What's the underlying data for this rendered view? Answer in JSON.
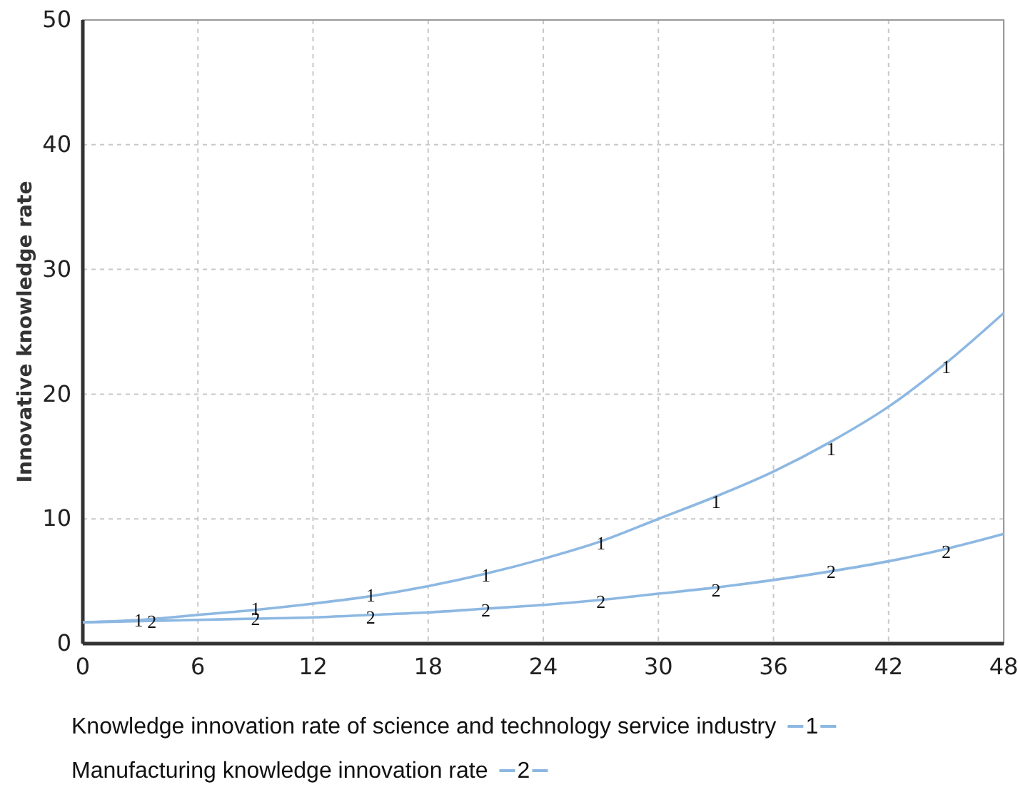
{
  "chart_data": {
    "type": "line",
    "ylabel": "Innovative knowledge rate",
    "x": [
      0,
      3,
      6,
      9,
      12,
      15,
      18,
      21,
      24,
      27,
      30,
      33,
      36,
      39,
      42,
      45,
      48
    ],
    "series": [
      {
        "name": "Knowledge innovation rate of science and technology service industry",
        "color": "#8db8e2",
        "values": [
          1.7,
          1.9,
          2.3,
          2.7,
          3.2,
          3.8,
          4.6,
          5.6,
          6.8,
          8.2,
          10,
          11.8,
          13.8,
          16.2,
          19,
          22.5,
          26.5
        ]
      },
      {
        "name": "Manufacturing knowledge innovation rate",
        "color": "#8db8e2",
        "values": [
          1.7,
          1.8,
          1.9,
          2.0,
          2.1,
          2.3,
          2.5,
          2.8,
          3.1,
          3.5,
          4,
          4.5,
          5.1,
          5.8,
          6.6,
          7.6,
          8.8
        ]
      }
    ],
    "annotations": [
      {
        "text": "1",
        "x": 2.9,
        "y": 1.9
      },
      {
        "text": "1",
        "x": 9,
        "y": 2.8
      },
      {
        "text": "1",
        "x": 15,
        "y": 3.9
      },
      {
        "text": "1",
        "x": 21,
        "y": 5.5
      },
      {
        "text": "1",
        "x": 27,
        "y": 8.1
      },
      {
        "text": "1",
        "x": 33,
        "y": 11.4
      },
      {
        "text": "1",
        "x": 39,
        "y": 15.6
      },
      {
        "text": "1",
        "x": 45,
        "y": 22.2
      },
      {
        "text": "2",
        "x": 3.6,
        "y": 1.8
      },
      {
        "text": "2",
        "x": 9,
        "y": 2.0
      },
      {
        "text": "2",
        "x": 15,
        "y": 2.1
      },
      {
        "text": "2",
        "x": 21,
        "y": 2.7
      },
      {
        "text": "2",
        "x": 27,
        "y": 3.4
      },
      {
        "text": "2",
        "x": 33,
        "y": 4.3
      },
      {
        "text": "2",
        "x": 39,
        "y": 5.8
      },
      {
        "text": "2",
        "x": 45,
        "y": 7.4
      }
    ],
    "xlim": [
      0,
      48
    ],
    "xticks": [
      0,
      6,
      12,
      18,
      24,
      30,
      36,
      42,
      48
    ],
    "ylim": [
      0,
      50
    ],
    "yticks": [
      0,
      10,
      20,
      30,
      40,
      50
    ],
    "grid": true,
    "legend": "bottom",
    "marker": "none",
    "line_style": "solid"
  }
}
